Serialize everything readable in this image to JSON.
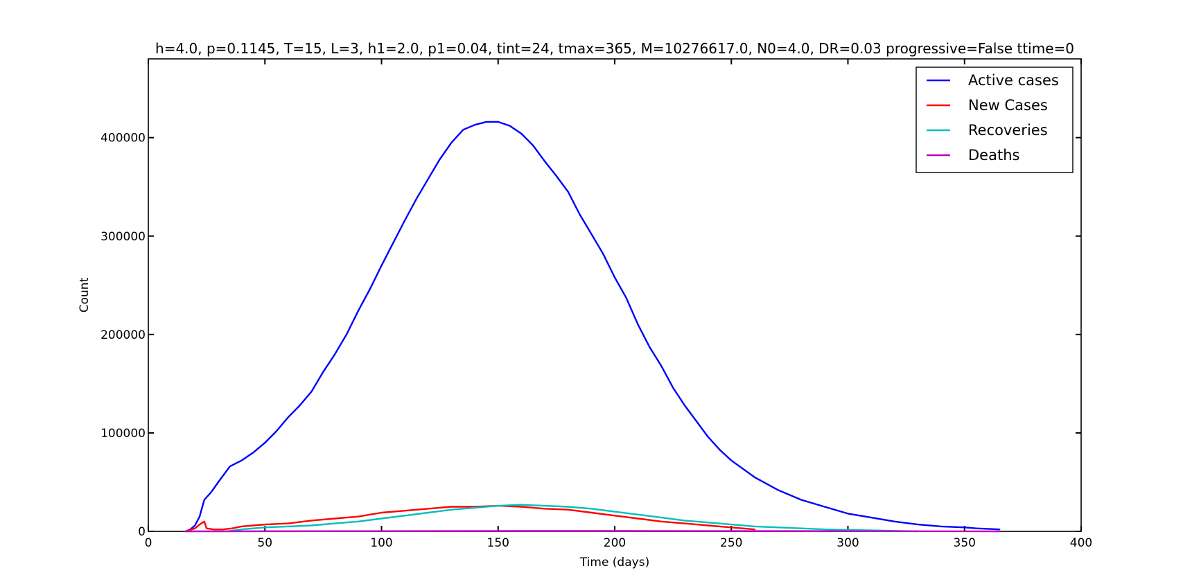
{
  "chart_data": {
    "type": "line",
    "title": "h=4.0, p=0.1145, T=15, L=3, h1=2.0, p1=0.04, tint=24, tmax=365, M=10276617.0, N0=4.0, DR=0.03 progressive=False ttime=0",
    "xlabel": "Time (days)",
    "ylabel": "Count",
    "xlim": [
      0,
      400
    ],
    "ylim": [
      0,
      480000
    ],
    "xticks": [
      0,
      50,
      100,
      150,
      200,
      250,
      300,
      350,
      400
    ],
    "xtick_labels": [
      "0",
      "50",
      "100",
      "150",
      "200",
      "250",
      "300",
      "350",
      "400"
    ],
    "yticks": [
      0,
      100000,
      200000,
      300000,
      400000
    ],
    "ytick_labels": [
      "0",
      "100000",
      "200000",
      "300000",
      "400000"
    ],
    "grid": false,
    "legend_position": "top-right",
    "series": [
      {
        "name": "Active cases",
        "color": "#0000ff",
        "x": [
          16,
          18,
          20,
          22,
          24,
          27,
          30,
          35,
          40,
          45,
          50,
          55,
          60,
          65,
          70,
          75,
          80,
          85,
          90,
          95,
          100,
          105,
          110,
          115,
          120,
          125,
          130,
          135,
          140,
          145,
          150,
          155,
          160,
          165,
          170,
          175,
          180,
          185,
          190,
          195,
          200,
          205,
          210,
          215,
          220,
          225,
          230,
          235,
          240,
          245,
          250,
          260,
          270,
          280,
          290,
          300,
          310,
          320,
          330,
          340,
          350,
          355,
          360,
          365
        ],
        "y": [
          0,
          2000,
          6000,
          15000,
          32000,
          40000,
          50000,
          66000,
          72000,
          80000,
          90000,
          102000,
          116000,
          128000,
          142000,
          162000,
          180000,
          200000,
          224000,
          246000,
          270000,
          293000,
          316000,
          338000,
          358000,
          378000,
          395000,
          408000,
          413000,
          416000,
          416000,
          412000,
          404000,
          392000,
          376000,
          361000,
          345000,
          322000,
          302000,
          282000,
          258000,
          237000,
          210000,
          187000,
          168000,
          146000,
          128000,
          112000,
          96000,
          83000,
          72000,
          55000,
          42000,
          32000,
          25000,
          18000,
          14000,
          10000,
          7000,
          5000,
          4000,
          3000,
          2500,
          2000
        ]
      },
      {
        "name": "New Cases",
        "color": "#ff0000",
        "x": [
          16,
          20,
          22,
          24,
          25,
          28,
          32,
          36,
          40,
          50,
          60,
          70,
          80,
          90,
          100,
          110,
          120,
          130,
          140,
          150,
          160,
          170,
          180,
          190,
          200,
          210,
          220,
          230,
          240,
          250,
          260
        ],
        "y": [
          0,
          3000,
          7000,
          10000,
          3000,
          2000,
          2000,
          3000,
          5000,
          7000,
          8000,
          11000,
          13000,
          15000,
          19000,
          21000,
          23000,
          25000,
          25000,
          26000,
          25000,
          23000,
          22000,
          19000,
          16000,
          13000,
          10000,
          8000,
          6000,
          4000,
          2000
        ]
      },
      {
        "name": "Recoveries",
        "color": "#00bfbf",
        "x": [
          34,
          40,
          50,
          60,
          70,
          80,
          90,
          100,
          110,
          120,
          130,
          140,
          150,
          160,
          170,
          180,
          190,
          200,
          210,
          220,
          230,
          240,
          250,
          260,
          270,
          280,
          290,
          300,
          310,
          320,
          330
        ],
        "y": [
          0,
          2000,
          4000,
          5000,
          6000,
          8000,
          10000,
          13000,
          16000,
          19000,
          22000,
          24000,
          26000,
          27000,
          26000,
          25000,
          23000,
          20000,
          17000,
          14000,
          11000,
          9000,
          7000,
          5000,
          4000,
          3000,
          2000,
          1500,
          1000,
          500,
          0
        ]
      },
      {
        "name": "Deaths",
        "color": "#bf00bf",
        "x": [
          16,
          100,
          200,
          300,
          365
        ],
        "y": [
          0,
          200,
          400,
          200,
          0
        ]
      }
    ]
  }
}
